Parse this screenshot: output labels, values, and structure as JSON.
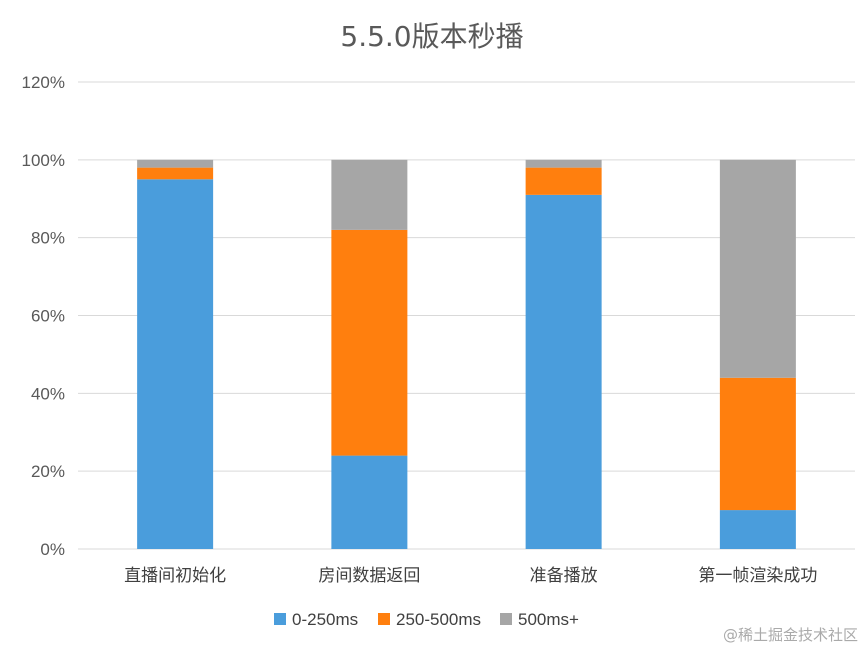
{
  "chart_data": {
    "type": "bar",
    "stacked": true,
    "title": "5.5.0版本秒播",
    "categories": [
      "直播间初始化",
      "房间数据返回",
      "准备播放",
      "第一帧渲染成功"
    ],
    "series": [
      {
        "name": "0-250ms",
        "color": "#4a9ddc",
        "values": [
          95,
          24,
          91,
          10
        ]
      },
      {
        "name": "250-500ms",
        "color": "#ff7f0e",
        "values": [
          3,
          58,
          7,
          34
        ]
      },
      {
        "name": "500ms+",
        "color": "#a6a6a6",
        "values": [
          2,
          18,
          2,
          56
        ]
      }
    ],
    "ylim": [
      0,
      120
    ],
    "yticks": [
      "0%",
      "20%",
      "40%",
      "60%",
      "80%",
      "100%",
      "120%"
    ],
    "ytick_values": [
      0,
      20,
      40,
      60,
      80,
      100,
      120
    ],
    "grid": true,
    "legend": "bottom"
  },
  "watermark": "@稀土掘金技术社区"
}
